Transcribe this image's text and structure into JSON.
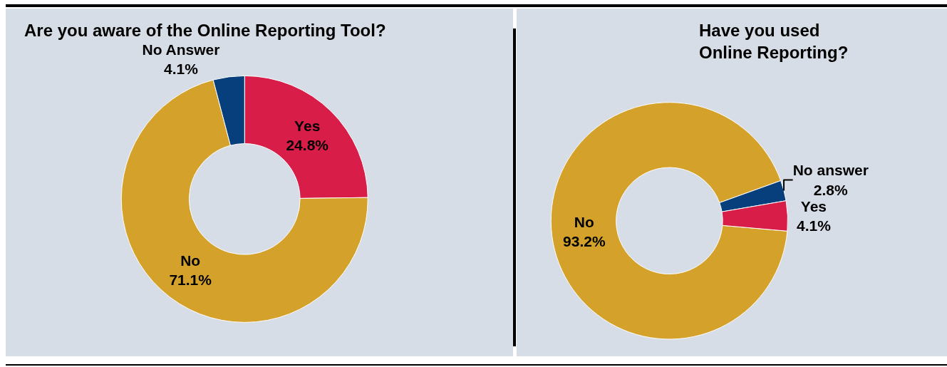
{
  "chart_data": [
    {
      "type": "donut",
      "title": "Are you aware of the Online Reporting Tool?",
      "categories": [
        "Yes",
        "No",
        "No Answer"
      ],
      "values": [
        24.8,
        71.1,
        4.1
      ],
      "colors": [
        "#d81e48",
        "#d4a12a",
        "#073f7c"
      ],
      "value_labels": [
        "24.8%",
        "71.1%",
        "4.1%"
      ],
      "legend": false
    },
    {
      "type": "donut",
      "title": "Have you used\nOnline Reporting?",
      "categories": [
        "No",
        "No answer",
        "Yes"
      ],
      "values": [
        93.2,
        2.8,
        4.1
      ],
      "colors": [
        "#d4a12a",
        "#073f7c",
        "#d81e48"
      ],
      "value_labels": [
        "93.2%",
        "2.8%",
        "4.1%"
      ],
      "legend": false
    }
  ]
}
